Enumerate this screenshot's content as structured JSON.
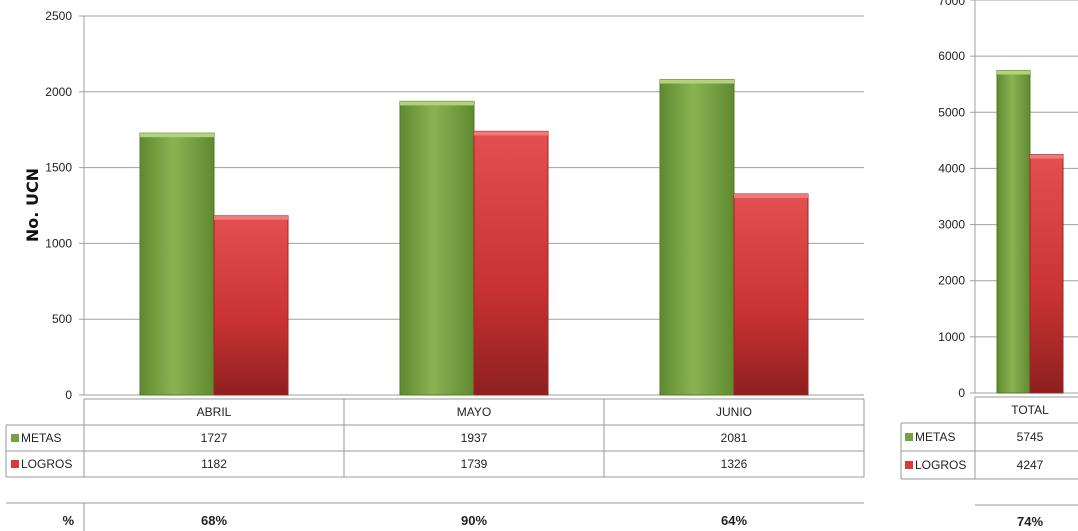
{
  "chart_data": [
    {
      "type": "bar",
      "categories": [
        "ABRIL",
        "MAYO",
        "JUNIO"
      ],
      "series": [
        {
          "name": "METAS",
          "values": [
            1727,
            1937,
            2081
          ]
        },
        {
          "name": "LOGROS",
          "values": [
            1182,
            1739,
            1326
          ]
        }
      ],
      "ylabel": "No. UCN",
      "ylim": [
        0,
        2500
      ],
      "yticks": [
        0,
        500,
        1000,
        1500,
        2000,
        2500
      ],
      "percent_label": "%",
      "percent_row": [
        "68%",
        "90%",
        "64%"
      ],
      "grid": true,
      "legend": "data-table"
    },
    {
      "type": "bar",
      "categories": [
        "TOTAL"
      ],
      "series": [
        {
          "name": "METAS",
          "values": [
            5745
          ]
        },
        {
          "name": "LOGROS",
          "values": [
            4247
          ]
        }
      ],
      "ylim": [
        0,
        7000
      ],
      "yticks": [
        0,
        1000,
        2000,
        3000,
        4000,
        5000,
        6000,
        7000
      ],
      "percent_row": [
        "74%"
      ],
      "grid": true,
      "legend": "data-table"
    }
  ],
  "colors": {
    "metas": "#77a042",
    "metas_dark": "#4f7a26",
    "logros": "#d83a3a",
    "logros_dark": "#9e2424",
    "grid": "#a0a0a0",
    "table_border": "#9a9a9a"
  }
}
